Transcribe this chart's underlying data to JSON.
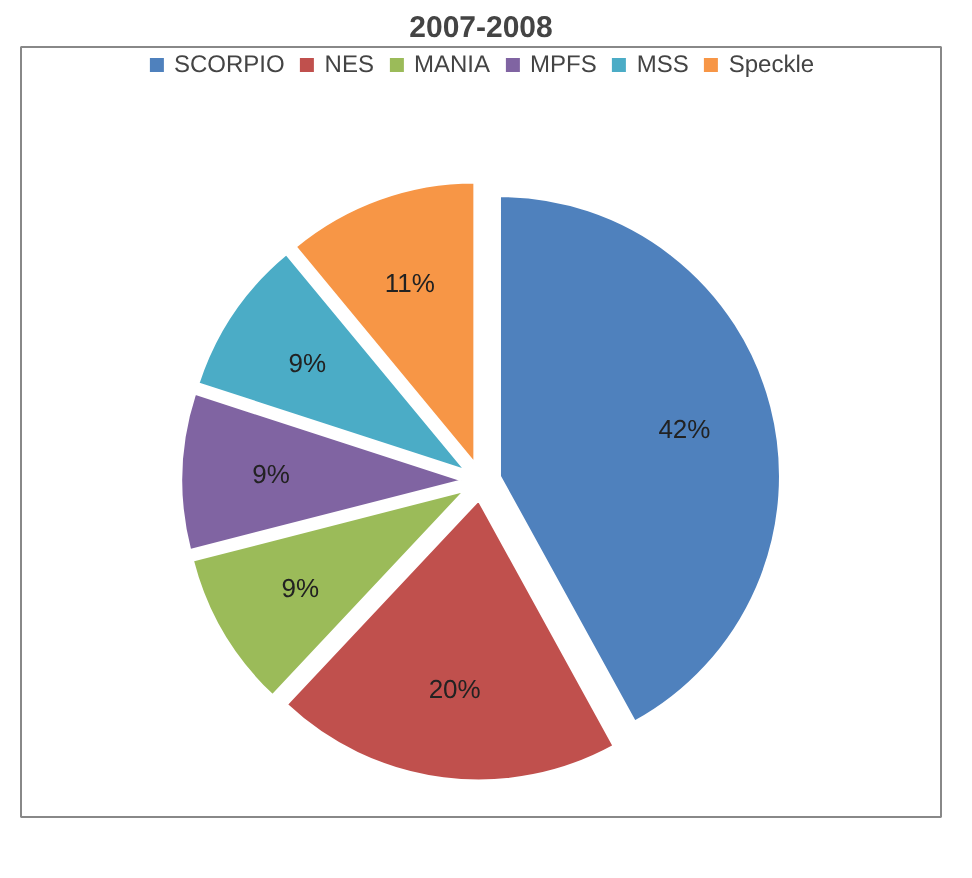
{
  "chart_data": {
    "type": "pie",
    "title": "2007-2008",
    "categories": [
      "SCORPIO",
      "NES",
      "MANIA",
      "MPFS",
      "MSS",
      "Speckle"
    ],
    "values": [
      42,
      20,
      9,
      9,
      9,
      11
    ],
    "colors": [
      "#4f81bd",
      "#c0504d",
      "#9bbb59",
      "#8064a2",
      "#4bacc6",
      "#f79646"
    ],
    "value_labels": [
      "42%",
      "20%",
      "9%",
      "9%",
      "9%",
      "11%"
    ],
    "legend": "top"
  }
}
